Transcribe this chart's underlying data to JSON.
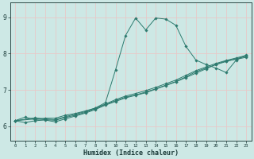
{
  "title": "",
  "xlabel": "Humidex (Indice chaleur)",
  "ylabel": "",
  "background_color": "#cde8e5",
  "grid_color": "#f0f0f0",
  "line_color": "#2d7a6e",
  "xlim": [
    -0.5,
    23.5
  ],
  "ylim": [
    5.6,
    9.4
  ],
  "xticks": [
    0,
    1,
    2,
    3,
    4,
    5,
    6,
    7,
    8,
    9,
    10,
    11,
    12,
    13,
    14,
    15,
    16,
    17,
    18,
    19,
    20,
    21,
    22,
    23
  ],
  "yticks": [
    6,
    7,
    8,
    9
  ],
  "series": [
    {
      "x": [
        0,
        1,
        2,
        3,
        4,
        5,
        6,
        7,
        8,
        9,
        10,
        11,
        12,
        13,
        14,
        15,
        16,
        17,
        18,
        19,
        20,
        21,
        22,
        23
      ],
      "y": [
        6.15,
        6.25,
        6.18,
        6.22,
        6.22,
        6.3,
        6.35,
        6.42,
        6.5,
        6.65,
        7.55,
        8.5,
        8.98,
        8.65,
        8.98,
        8.95,
        8.78,
        8.2,
        7.82,
        7.7,
        7.6,
        7.48,
        7.82,
        7.96
      ]
    },
    {
      "x": [
        0,
        1,
        2,
        3,
        4,
        5,
        6,
        7,
        8,
        9,
        10,
        11,
        12,
        13,
        14,
        15,
        16,
        17,
        18,
        19,
        20,
        21,
        22,
        23
      ],
      "y": [
        6.15,
        6.1,
        6.15,
        6.17,
        6.12,
        6.2,
        6.28,
        6.36,
        6.46,
        6.58,
        6.68,
        6.78,
        6.85,
        6.92,
        7.02,
        7.12,
        7.22,
        7.34,
        7.46,
        7.58,
        7.7,
        7.8,
        7.84,
        7.9
      ]
    },
    {
      "x": [
        0,
        2,
        3,
        4,
        5,
        6,
        7,
        8,
        9,
        10,
        11,
        12,
        13,
        14,
        15,
        16,
        17,
        18,
        19,
        20,
        21,
        22,
        23
      ],
      "y": [
        6.15,
        6.2,
        6.18,
        6.16,
        6.24,
        6.3,
        6.38,
        6.48,
        6.6,
        6.7,
        6.8,
        6.86,
        6.94,
        7.03,
        7.13,
        7.23,
        7.36,
        7.5,
        7.6,
        7.7,
        7.78,
        7.86,
        7.93
      ]
    },
    {
      "x": [
        0,
        2,
        3,
        4,
        5,
        6,
        7,
        8,
        9,
        10,
        11,
        12,
        13,
        14,
        15,
        16,
        17,
        18,
        19,
        20,
        21,
        22,
        23
      ],
      "y": [
        6.15,
        6.23,
        6.2,
        6.18,
        6.26,
        6.33,
        6.4,
        6.5,
        6.61,
        6.73,
        6.83,
        6.9,
        6.98,
        7.07,
        7.17,
        7.27,
        7.4,
        7.53,
        7.63,
        7.73,
        7.81,
        7.88,
        7.95
      ]
    }
  ]
}
